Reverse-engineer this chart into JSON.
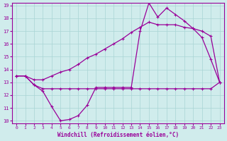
{
  "x": [
    0,
    1,
    2,
    3,
    4,
    5,
    6,
    7,
    8,
    9,
    10,
    11,
    12,
    13,
    14,
    15,
    16,
    17,
    18,
    19,
    20,
    21,
    22,
    23
  ],
  "curve_jagged": [
    13.5,
    13.5,
    12.8,
    12.3,
    11.1,
    10.0,
    10.1,
    10.4,
    11.2,
    12.6,
    12.6,
    12.6,
    12.6,
    12.6,
    17.0,
    19.2,
    18.1,
    18.8,
    18.3,
    17.8,
    17.2,
    16.5,
    14.8,
    13.0
  ],
  "curve_smooth": [
    13.5,
    13.5,
    13.2,
    13.2,
    13.5,
    13.8,
    14.0,
    14.4,
    14.9,
    15.2,
    15.6,
    16.0,
    16.4,
    16.9,
    17.3,
    17.7,
    17.5,
    17.5,
    17.5,
    17.3,
    17.2,
    17.0,
    16.6,
    13.0
  ],
  "curve_flat": [
    13.5,
    13.5,
    12.8,
    12.5,
    12.5,
    12.5,
    12.5,
    12.5,
    12.5,
    12.5,
    12.5,
    12.5,
    12.5,
    12.5,
    12.5,
    12.5,
    12.5,
    12.5,
    12.5,
    12.5,
    12.5,
    12.5,
    12.5,
    13.0
  ],
  "color": "#990099",
  "bgcolor": "#d0ecec",
  "xlabel": "Windchill (Refroidissement éolien,°C)",
  "ylim": [
    10,
    19
  ],
  "xlim": [
    -0.5,
    23.5
  ],
  "yticks": [
    10,
    11,
    12,
    13,
    14,
    15,
    16,
    17,
    18,
    19
  ],
  "xticks": [
    0,
    1,
    2,
    3,
    4,
    5,
    6,
    7,
    8,
    9,
    10,
    11,
    12,
    13,
    14,
    15,
    16,
    17,
    18,
    19,
    20,
    21,
    22,
    23
  ],
  "grid_color": "#a8d4d4",
  "marker": "+"
}
